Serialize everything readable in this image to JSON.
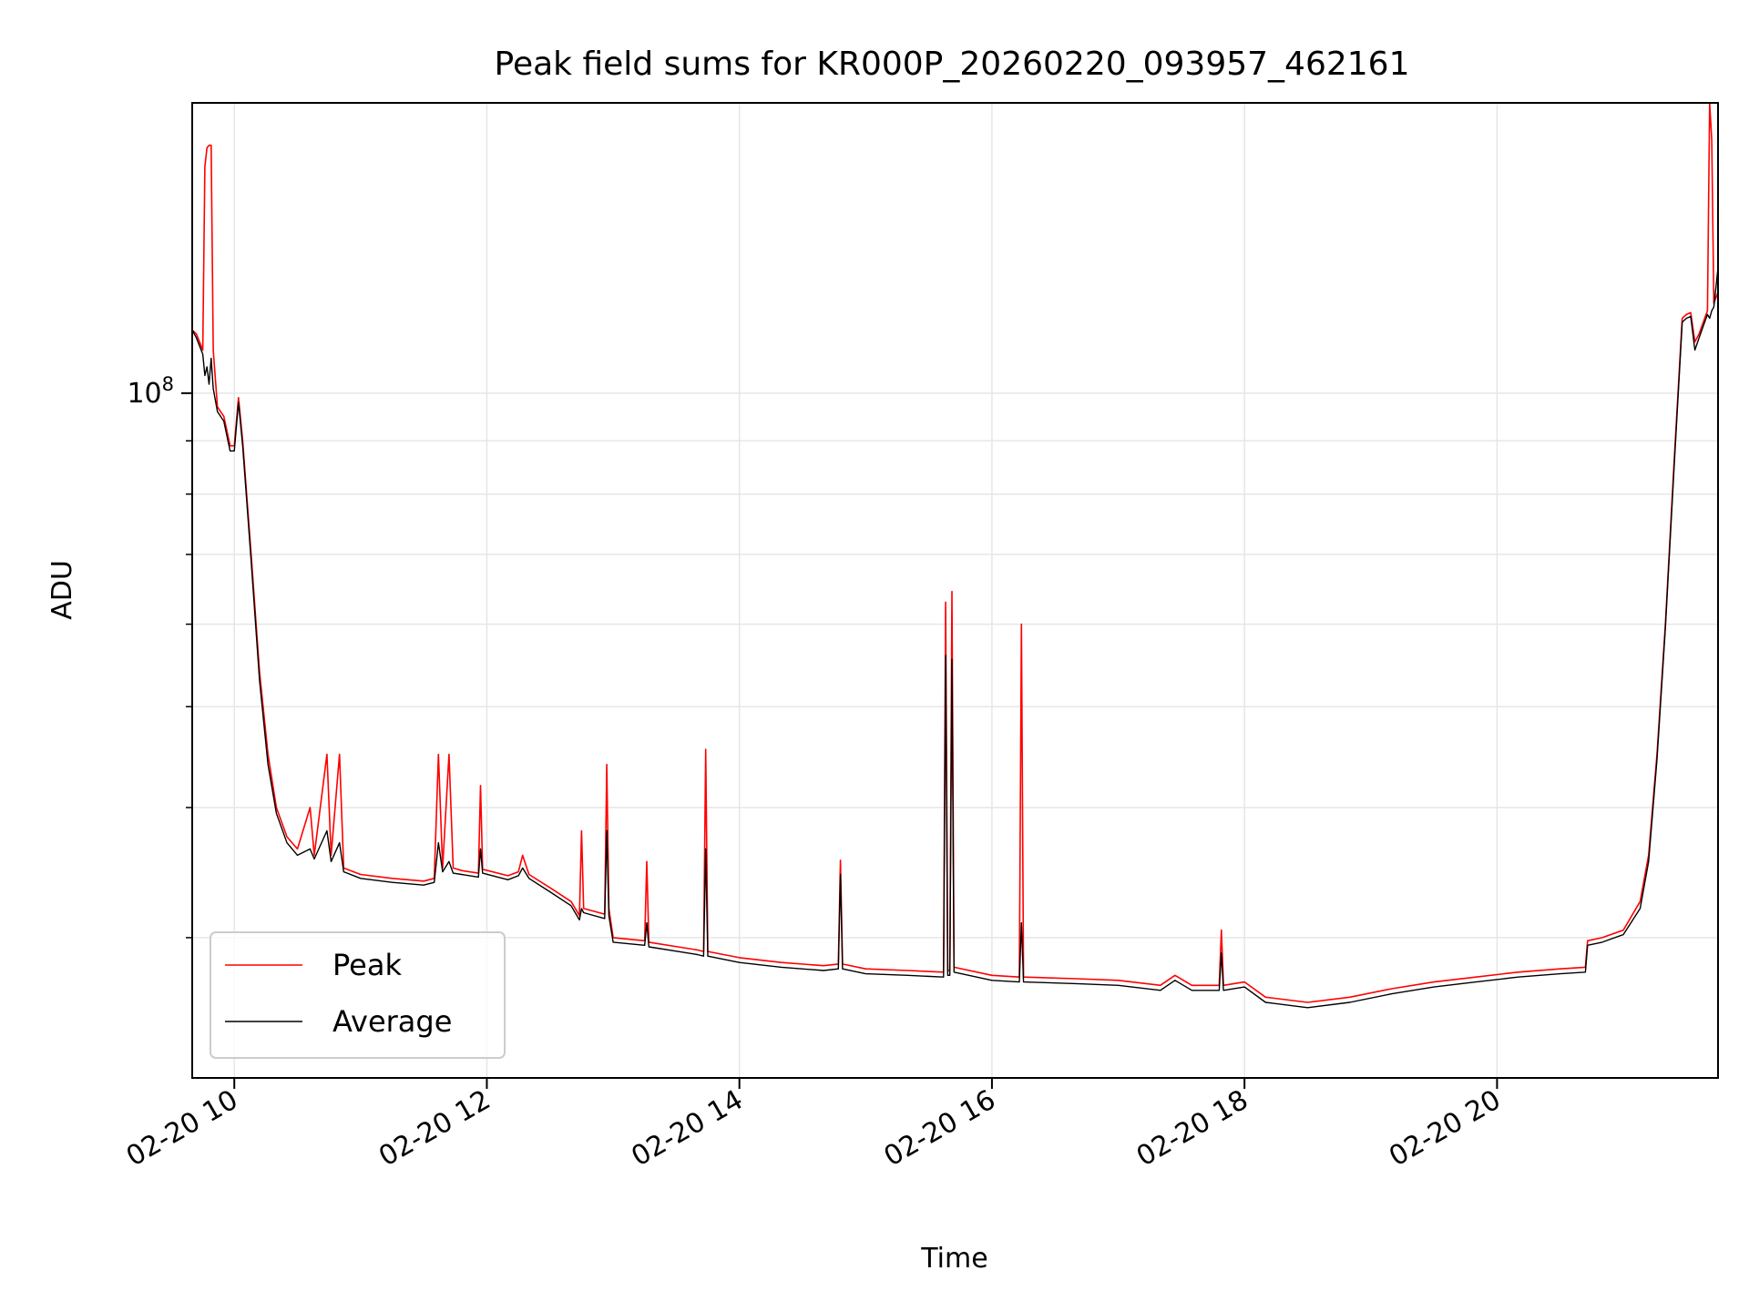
{
  "chart_data": {
    "type": "line",
    "title": "Peak field sums for KR000P_20260220_093957_462161",
    "xlabel": "Time",
    "ylabel": "ADU",
    "y_scale": "log",
    "xlim": [
      "2026-02-20 09:40",
      "2026-02-20 21:45"
    ],
    "ylim": [
      22000000,
      190000000
    ],
    "x_ticks": [
      {
        "value": "2026-02-20 10:00",
        "label": "02-20 10"
      },
      {
        "value": "2026-02-20 12:00",
        "label": "02-20 12"
      },
      {
        "value": "2026-02-20 14:00",
        "label": "02-20 14"
      },
      {
        "value": "2026-02-20 16:00",
        "label": "02-20 16"
      },
      {
        "value": "2026-02-20 18:00",
        "label": "02-20 18"
      },
      {
        "value": "2026-02-20 20:00",
        "label": "02-20 20"
      }
    ],
    "y_major_ticks": [
      {
        "value": 100000000,
        "base": "10",
        "exp": "8"
      }
    ],
    "y_minor_ticks": [
      30000000,
      40000000,
      50000000,
      60000000,
      70000000,
      80000000,
      90000000
    ],
    "grid": true,
    "legend": "lower-left",
    "series": [
      {
        "name": "Peak",
        "color": "#ff0000",
        "points": [
          [
            "2026-02-20 09:40",
            115000000
          ],
          [
            "2026-02-20 09:42",
            114000000
          ],
          [
            "2026-02-20 09:45",
            110000000
          ],
          [
            "2026-02-20 09:46",
            165000000
          ],
          [
            "2026-02-20 09:47",
            172000000
          ],
          [
            "2026-02-20 09:48",
            173000000
          ],
          [
            "2026-02-20 09:49",
            173000000
          ],
          [
            "2026-02-20 09:50",
            110000000
          ],
          [
            "2026-02-20 09:52",
            97000000
          ],
          [
            "2026-02-20 09:55",
            95000000
          ],
          [
            "2026-02-20 09:58",
            89000000
          ],
          [
            "2026-02-20 10:00",
            89000000
          ],
          [
            "2026-02-20 10:02",
            99000000
          ],
          [
            "2026-02-20 10:04",
            90000000
          ],
          [
            "2026-02-20 10:08",
            70000000
          ],
          [
            "2026-02-20 10:12",
            54000000
          ],
          [
            "2026-02-20 10:16",
            45000000
          ],
          [
            "2026-02-20 10:20",
            40000000
          ],
          [
            "2026-02-20 10:25",
            37500000
          ],
          [
            "2026-02-20 10:30",
            36500000
          ],
          [
            "2026-02-20 10:36",
            40000000
          ],
          [
            "2026-02-20 10:38",
            36000000
          ],
          [
            "2026-02-20 10:44",
            45000000
          ],
          [
            "2026-02-20 10:46",
            36000000
          ],
          [
            "2026-02-20 10:50",
            45000000
          ],
          [
            "2026-02-20 10:52",
            35000000
          ],
          [
            "2026-02-20 11:00",
            34500000
          ],
          [
            "2026-02-20 11:15",
            34200000
          ],
          [
            "2026-02-20 11:30",
            34000000
          ],
          [
            "2026-02-20 11:35",
            34200000
          ],
          [
            "2026-02-20 11:37",
            45000000
          ],
          [
            "2026-02-20 11:39",
            35000000
          ],
          [
            "2026-02-20 11:42",
            45000000
          ],
          [
            "2026-02-20 11:44",
            35000000
          ],
          [
            "2026-02-20 11:48",
            34800000
          ],
          [
            "2026-02-20 11:56",
            34600000
          ],
          [
            "2026-02-20 11:57",
            42000000
          ],
          [
            "2026-02-20 11:58",
            34900000
          ],
          [
            "2026-02-20 12:10",
            34400000
          ],
          [
            "2026-02-20 12:15",
            34700000
          ],
          [
            "2026-02-20 12:17",
            36000000
          ],
          [
            "2026-02-20 12:20",
            34500000
          ],
          [
            "2026-02-20 12:30",
            33500000
          ],
          [
            "2026-02-20 12:40",
            32500000
          ],
          [
            "2026-02-20 12:44",
            31500000
          ],
          [
            "2026-02-20 12:45",
            38000000
          ],
          [
            "2026-02-20 12:46",
            32000000
          ],
          [
            "2026-02-20 12:56",
            31600000
          ],
          [
            "2026-02-20 12:57",
            44000000
          ],
          [
            "2026-02-20 12:58",
            32000000
          ],
          [
            "2026-02-20 13:00",
            30000000
          ],
          [
            "2026-02-20 13:15",
            29800000
          ],
          [
            "2026-02-20 13:16",
            35500000
          ],
          [
            "2026-02-20 13:17",
            29700000
          ],
          [
            "2026-02-20 13:40",
            29200000
          ],
          [
            "2026-02-20 13:43",
            29100000
          ],
          [
            "2026-02-20 13:44",
            45500000
          ],
          [
            "2026-02-20 13:45",
            29100000
          ],
          [
            "2026-02-20 14:00",
            28700000
          ],
          [
            "2026-02-20 14:20",
            28400000
          ],
          [
            "2026-02-20 14:40",
            28200000
          ],
          [
            "2026-02-20 14:47",
            28300000
          ],
          [
            "2026-02-20 14:48",
            35600000
          ],
          [
            "2026-02-20 14:49",
            28300000
          ],
          [
            "2026-02-20 15:00",
            28000000
          ],
          [
            "2026-02-20 15:20",
            27900000
          ],
          [
            "2026-02-20 15:37",
            27800000
          ],
          [
            "2026-02-20 15:38",
            63000000
          ],
          [
            "2026-02-20 15:39",
            27900000
          ],
          [
            "2026-02-20 15:40",
            27900000
          ],
          [
            "2026-02-20 15:41",
            64500000
          ],
          [
            "2026-02-20 15:42",
            28100000
          ],
          [
            "2026-02-20 16:00",
            27600000
          ],
          [
            "2026-02-20 16:13",
            27500000
          ],
          [
            "2026-02-20 16:14",
            60000000
          ],
          [
            "2026-02-20 16:15",
            27500000
          ],
          [
            "2026-02-20 16:40",
            27400000
          ],
          [
            "2026-02-20 17:00",
            27300000
          ],
          [
            "2026-02-20 17:20",
            27000000
          ],
          [
            "2026-02-20 17:27",
            27600000
          ],
          [
            "2026-02-20 17:35",
            27000000
          ],
          [
            "2026-02-20 17:48",
            27000000
          ],
          [
            "2026-02-20 17:49",
            30500000
          ],
          [
            "2026-02-20 17:50",
            27000000
          ],
          [
            "2026-02-20 18:00",
            27200000
          ],
          [
            "2026-02-20 18:10",
            26300000
          ],
          [
            "2026-02-20 18:30",
            26000000
          ],
          [
            "2026-02-20 18:50",
            26300000
          ],
          [
            "2026-02-20 19:10",
            26800000
          ],
          [
            "2026-02-20 19:30",
            27200000
          ],
          [
            "2026-02-20 19:50",
            27500000
          ],
          [
            "2026-02-20 20:10",
            27800000
          ],
          [
            "2026-02-20 20:30",
            28000000
          ],
          [
            "2026-02-20 20:42",
            28100000
          ],
          [
            "2026-02-20 20:43",
            29800000
          ],
          [
            "2026-02-20 20:50",
            30000000
          ],
          [
            "2026-02-20 21:00",
            30500000
          ],
          [
            "2026-02-20 21:08",
            32500000
          ],
          [
            "2026-02-20 21:12",
            36000000
          ],
          [
            "2026-02-20 21:16",
            45000000
          ],
          [
            "2026-02-20 21:20",
            60000000
          ],
          [
            "2026-02-20 21:24",
            85000000
          ],
          [
            "2026-02-20 21:28",
            118000000
          ],
          [
            "2026-02-20 21:30",
            119000000
          ],
          [
            "2026-02-20 21:32",
            119500000
          ],
          [
            "2026-02-20 21:34",
            112000000
          ],
          [
            "2026-02-20 21:36",
            114000000
          ],
          [
            "2026-02-20 21:38",
            117000000
          ],
          [
            "2026-02-20 21:40",
            120000000
          ],
          [
            "2026-02-20 21:41",
            190000000
          ],
          [
            "2026-02-20 21:42",
            175000000
          ],
          [
            "2026-02-20 21:43",
            122000000
          ],
          [
            "2026-02-20 21:45",
            125000000
          ]
        ]
      },
      {
        "name": "Average",
        "color": "#000000",
        "points": [
          [
            "2026-02-20 09:40",
            115000000
          ],
          [
            "2026-02-20 09:42",
            113000000
          ],
          [
            "2026-02-20 09:45",
            109000000
          ],
          [
            "2026-02-20 09:46",
            104000000
          ],
          [
            "2026-02-20 09:47",
            106000000
          ],
          [
            "2026-02-20 09:48",
            102000000
          ],
          [
            "2026-02-20 09:49",
            108000000
          ],
          [
            "2026-02-20 09:50",
            101000000
          ],
          [
            "2026-02-20 09:52",
            96000000
          ],
          [
            "2026-02-20 09:55",
            94000000
          ],
          [
            "2026-02-20 09:58",
            88000000
          ],
          [
            "2026-02-20 10:00",
            88000000
          ],
          [
            "2026-02-20 10:02",
            98000000
          ],
          [
            "2026-02-20 10:04",
            89000000
          ],
          [
            "2026-02-20 10:08",
            69000000
          ],
          [
            "2026-02-20 10:12",
            53000000
          ],
          [
            "2026-02-20 10:16",
            44000000
          ],
          [
            "2026-02-20 10:20",
            39500000
          ],
          [
            "2026-02-20 10:25",
            37000000
          ],
          [
            "2026-02-20 10:30",
            36000000
          ],
          [
            "2026-02-20 10:36",
            36500000
          ],
          [
            "2026-02-20 10:38",
            35700000
          ],
          [
            "2026-02-20 10:44",
            38000000
          ],
          [
            "2026-02-20 10:46",
            35500000
          ],
          [
            "2026-02-20 10:50",
            37000000
          ],
          [
            "2026-02-20 10:52",
            34700000
          ],
          [
            "2026-02-20 11:00",
            34200000
          ],
          [
            "2026-02-20 11:15",
            33900000
          ],
          [
            "2026-02-20 11:30",
            33700000
          ],
          [
            "2026-02-20 11:35",
            33900000
          ],
          [
            "2026-02-20 11:37",
            37000000
          ],
          [
            "2026-02-20 11:39",
            34700000
          ],
          [
            "2026-02-20 11:42",
            35500000
          ],
          [
            "2026-02-20 11:44",
            34600000
          ],
          [
            "2026-02-20 11:48",
            34500000
          ],
          [
            "2026-02-20 11:56",
            34300000
          ],
          [
            "2026-02-20 11:57",
            36500000
          ],
          [
            "2026-02-20 11:58",
            34600000
          ],
          [
            "2026-02-20 12:10",
            34100000
          ],
          [
            "2026-02-20 12:15",
            34400000
          ],
          [
            "2026-02-20 12:17",
            35000000
          ],
          [
            "2026-02-20 12:20",
            34200000
          ],
          [
            "2026-02-20 12:30",
            33200000
          ],
          [
            "2026-02-20 12:40",
            32200000
          ],
          [
            "2026-02-20 12:44",
            31200000
          ],
          [
            "2026-02-20 12:45",
            32000000
          ],
          [
            "2026-02-20 12:46",
            31700000
          ],
          [
            "2026-02-20 12:56",
            31300000
          ],
          [
            "2026-02-20 12:57",
            38000000
          ],
          [
            "2026-02-20 12:58",
            31500000
          ],
          [
            "2026-02-20 13:00",
            29700000
          ],
          [
            "2026-02-20 13:15",
            29500000
          ],
          [
            "2026-02-20 13:16",
            31000000
          ],
          [
            "2026-02-20 13:17",
            29400000
          ],
          [
            "2026-02-20 13:40",
            28900000
          ],
          [
            "2026-02-20 13:43",
            28800000
          ],
          [
            "2026-02-20 13:44",
            36500000
          ],
          [
            "2026-02-20 13:45",
            28800000
          ],
          [
            "2026-02-20 14:00",
            28400000
          ],
          [
            "2026-02-20 14:20",
            28100000
          ],
          [
            "2026-02-20 14:40",
            27900000
          ],
          [
            "2026-02-20 14:47",
            28000000
          ],
          [
            "2026-02-20 14:48",
            34500000
          ],
          [
            "2026-02-20 14:49",
            28000000
          ],
          [
            "2026-02-20 15:00",
            27700000
          ],
          [
            "2026-02-20 15:20",
            27600000
          ],
          [
            "2026-02-20 15:37",
            27500000
          ],
          [
            "2026-02-20 15:38",
            56000000
          ],
          [
            "2026-02-20 15:39",
            27600000
          ],
          [
            "2026-02-20 15:40",
            27600000
          ],
          [
            "2026-02-20 15:41",
            55500000
          ],
          [
            "2026-02-20 15:42",
            27800000
          ],
          [
            "2026-02-20 16:00",
            27300000
          ],
          [
            "2026-02-20 16:13",
            27200000
          ],
          [
            "2026-02-20 16:14",
            31000000
          ],
          [
            "2026-02-20 16:15",
            27200000
          ],
          [
            "2026-02-20 16:40",
            27100000
          ],
          [
            "2026-02-20 17:00",
            27000000
          ],
          [
            "2026-02-20 17:20",
            26700000
          ],
          [
            "2026-02-20 17:27",
            27300000
          ],
          [
            "2026-02-20 17:35",
            26700000
          ],
          [
            "2026-02-20 17:48",
            26700000
          ],
          [
            "2026-02-20 17:49",
            29000000
          ],
          [
            "2026-02-20 17:50",
            26700000
          ],
          [
            "2026-02-20 18:00",
            26900000
          ],
          [
            "2026-02-20 18:10",
            26000000
          ],
          [
            "2026-02-20 18:30",
            25700000
          ],
          [
            "2026-02-20 18:50",
            26000000
          ],
          [
            "2026-02-20 19:10",
            26500000
          ],
          [
            "2026-02-20 19:30",
            26900000
          ],
          [
            "2026-02-20 19:50",
            27200000
          ],
          [
            "2026-02-20 20:10",
            27500000
          ],
          [
            "2026-02-20 20:30",
            27700000
          ],
          [
            "2026-02-20 20:42",
            27800000
          ],
          [
            "2026-02-20 20:43",
            29500000
          ],
          [
            "2026-02-20 20:50",
            29700000
          ],
          [
            "2026-02-20 21:00",
            30200000
          ],
          [
            "2026-02-20 21:08",
            32000000
          ],
          [
            "2026-02-20 21:12",
            35500000
          ],
          [
            "2026-02-20 21:16",
            44500000
          ],
          [
            "2026-02-20 21:20",
            59500000
          ],
          [
            "2026-02-20 21:24",
            84000000
          ],
          [
            "2026-02-20 21:28",
            117000000
          ],
          [
            "2026-02-20 21:30",
            118000000
          ],
          [
            "2026-02-20 21:32",
            118500000
          ],
          [
            "2026-02-20 21:34",
            110000000
          ],
          [
            "2026-02-20 21:36",
            113000000
          ],
          [
            "2026-02-20 21:38",
            116000000
          ],
          [
            "2026-02-20 21:40",
            119000000
          ],
          [
            "2026-02-20 21:41",
            118000000
          ],
          [
            "2026-02-20 21:42",
            120000000
          ],
          [
            "2026-02-20 21:43",
            121000000
          ],
          [
            "2026-02-20 21:45",
            132000000
          ]
        ]
      }
    ]
  }
}
